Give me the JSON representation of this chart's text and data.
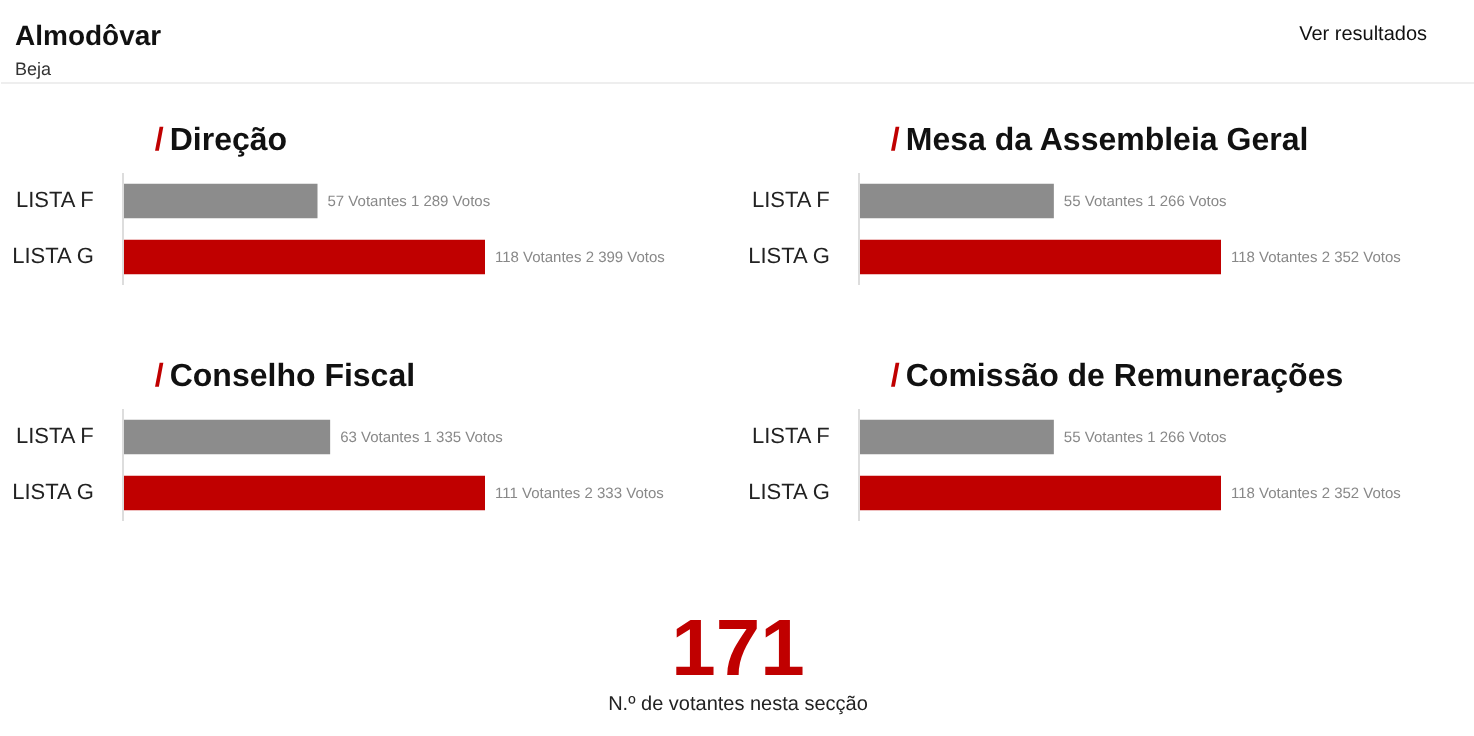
{
  "chart_data": [
    {
      "type": "other",
      "title": "Almodôvar",
      "subtitle": "Beja",
      "annotations": [
        "Ver resultados"
      ]
    },
    {
      "type": "bar",
      "orientation": "horizontal",
      "title": "/ Direção",
      "categories": [
        "LISTA F",
        "LISTA G"
      ],
      "values": [
        1289,
        2399
      ],
      "colors": [
        "#8c8c8c",
        "#c00000"
      ],
      "value_labels": [
        "57 Votantes  1 289 Votos",
        "118 Votantes  2 399 Votos"
      ]
    },
    {
      "type": "bar",
      "orientation": "horizontal",
      "title": "/ Mesa da Assembleia Geral",
      "categories": [
        "LISTA F",
        "LISTA G"
      ],
      "values": [
        1266,
        2352
      ],
      "colors": [
        "#8c8c8c",
        "#c00000"
      ],
      "value_labels": [
        "55 Votantes  1 266 Votos",
        "118 Votantes  2 352 Votos"
      ]
    },
    {
      "type": "bar",
      "orientation": "horizontal",
      "title": "/ Conselho Fiscal",
      "categories": [
        "LISTA F",
        "LISTA G"
      ],
      "values": [
        1335,
        2333
      ],
      "colors": [
        "#8c8c8c",
        "#c00000"
      ],
      "value_labels": [
        "63 Votantes  1 335 Votos",
        "111 Votantes  2 333 Votos"
      ]
    },
    {
      "type": "bar",
      "orientation": "horizontal",
      "title": "/ Comissão de Remunerações",
      "categories": [
        "LISTA F",
        "LISTA G"
      ],
      "values": [
        1266,
        2352
      ],
      "colors": [
        "#8c8c8c",
        "#c00000"
      ],
      "value_labels": [
        "55 Votantes  1 266 Votos",
        "118 Votantes  2 352 Votos"
      ]
    },
    {
      "type": "other",
      "title": "171",
      "subtitle": "N.º de votantes nesta secção"
    }
  ]
}
